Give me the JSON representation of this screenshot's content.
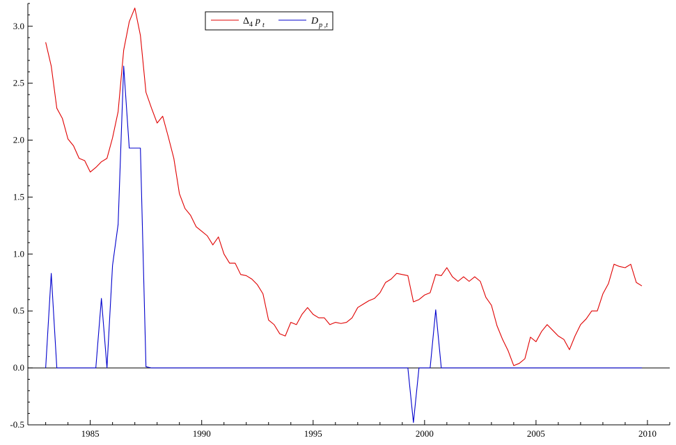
{
  "chart_data": {
    "type": "line",
    "title": "",
    "xlabel": "",
    "ylabel": "",
    "xlim": [
      1982.2,
      2011.0
    ],
    "ylim": [
      -0.5,
      3.2
    ],
    "x_ticks": [
      1985,
      1990,
      1995,
      2000,
      2005,
      2010
    ],
    "y_ticks": [
      -0.5,
      0.0,
      0.5,
      1.0,
      1.5,
      2.0,
      2.5,
      3.0
    ],
    "x_tick_labels": [
      "1985",
      "1990",
      "1995",
      "2000",
      "2005",
      "2010"
    ],
    "y_tick_labels": [
      "-0.5",
      "0.0",
      "0.5",
      "1.0",
      "1.5",
      "2.0",
      "2.5",
      "3.0"
    ],
    "zero_line": true,
    "grid": false,
    "legend_position": "top-center",
    "series": [
      {
        "key": "d4p",
        "legend_parts": [
          "Δ",
          "4",
          "p",
          "t"
        ],
        "color": "#e00000",
        "x": [
          1983.0,
          1983.25,
          1983.5,
          1983.75,
          1984.0,
          1984.25,
          1984.5,
          1984.75,
          1985.0,
          1985.25,
          1985.5,
          1985.75,
          1986.0,
          1986.25,
          1986.5,
          1986.75,
          1987.0,
          1987.25,
          1987.5,
          1987.75,
          1988.0,
          1988.25,
          1988.5,
          1988.75,
          1989.0,
          1989.25,
          1989.5,
          1989.75,
          1990.0,
          1990.25,
          1990.5,
          1990.75,
          1991.0,
          1991.25,
          1991.5,
          1991.75,
          1992.0,
          1992.25,
          1992.5,
          1992.75,
          1993.0,
          1993.25,
          1993.5,
          1993.75,
          1994.0,
          1994.25,
          1994.5,
          1994.75,
          1995.0,
          1995.25,
          1995.5,
          1995.75,
          1996.0,
          1996.25,
          1996.5,
          1996.75,
          1997.0,
          1997.25,
          1997.5,
          1997.75,
          1998.0,
          1998.25,
          1998.5,
          1998.75,
          1999.0,
          1999.25,
          1999.5,
          1999.75,
          2000.0,
          2000.25,
          2000.5,
          2000.75,
          2001.0,
          2001.25,
          2001.5,
          2001.75,
          2002.0,
          2002.25,
          2002.5,
          2002.75,
          2003.0,
          2003.25,
          2003.5,
          2003.75,
          2004.0,
          2004.25,
          2004.5,
          2004.75,
          2005.0,
          2005.25,
          2005.5,
          2005.75,
          2006.0,
          2006.25,
          2006.5,
          2006.75,
          2007.0,
          2007.25,
          2007.5,
          2007.75,
          2008.0,
          2008.25,
          2008.5,
          2008.75,
          2009.0,
          2009.25,
          2009.5,
          2009.75
        ],
        "y": [
          2.86,
          2.65,
          2.28,
          2.19,
          2.01,
          1.95,
          1.84,
          1.82,
          1.72,
          1.76,
          1.81,
          1.84,
          2.02,
          2.25,
          2.79,
          3.04,
          3.16,
          2.92,
          2.42,
          2.28,
          2.15,
          2.21,
          2.03,
          1.84,
          1.53,
          1.4,
          1.34,
          1.24,
          1.2,
          1.16,
          1.08,
          1.15,
          1.0,
          0.92,
          0.92,
          0.82,
          0.81,
          0.78,
          0.73,
          0.65,
          0.42,
          0.38,
          0.3,
          0.28,
          0.4,
          0.38,
          0.47,
          0.53,
          0.47,
          0.44,
          0.44,
          0.38,
          0.4,
          0.39,
          0.4,
          0.44,
          0.53,
          0.56,
          0.59,
          0.61,
          0.66,
          0.75,
          0.78,
          0.83,
          0.82,
          0.81,
          0.58,
          0.6,
          0.64,
          0.66,
          0.82,
          0.81,
          0.88,
          0.8,
          0.76,
          0.8,
          0.76,
          0.8,
          0.76,
          0.62,
          0.55,
          0.37,
          0.25,
          0.15,
          0.02,
          0.04,
          0.08,
          0.27,
          0.23,
          0.32,
          0.38,
          0.33,
          0.28,
          0.25,
          0.16,
          0.28,
          0.38,
          0.43,
          0.5,
          0.5,
          0.65,
          0.74,
          0.91,
          0.89,
          0.88,
          0.91,
          0.75,
          0.72
        ]
      },
      {
        "key": "dp",
        "legend_parts": [
          "D",
          "p ,t"
        ],
        "color": "#0000cc",
        "x": [
          1983.0,
          1983.25,
          1983.5,
          1983.75,
          1985.25,
          1985.5,
          1985.75,
          1986.0,
          1986.25,
          1986.5,
          1986.75,
          1987.0,
          1987.25,
          1987.5,
          1987.75,
          1999.25,
          1999.5,
          1999.75,
          2000.0,
          2000.25,
          2000.5,
          2000.75,
          2009.75
        ],
        "y": [
          0.0,
          0.83,
          0.0,
          0.0,
          0.0,
          0.61,
          0.0,
          0.9,
          1.26,
          2.65,
          1.93,
          1.93,
          1.93,
          0.01,
          0.0,
          0.0,
          -0.48,
          0.0,
          0.0,
          0.0,
          0.51,
          0.0,
          0.0
        ]
      }
    ]
  }
}
